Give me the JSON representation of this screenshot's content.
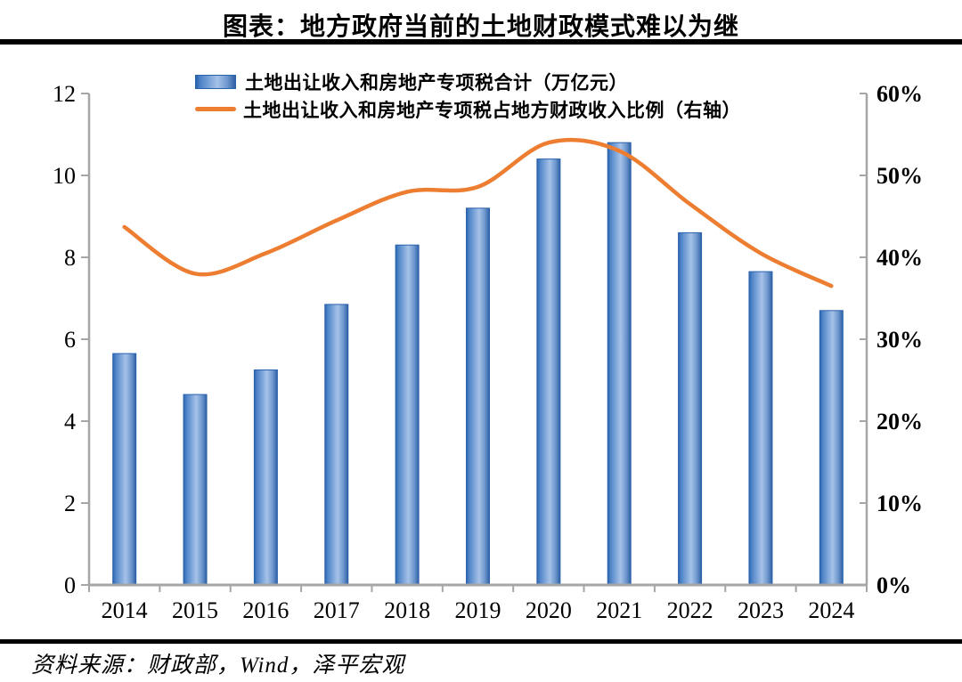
{
  "page": {
    "title": "图表：地方政府当前的土地财政模式难以为继",
    "source": "资料来源：财政部，Wind，泽平宏观"
  },
  "legend": [
    {
      "swatch": "bar-swatch",
      "label": "土地出让收入和房地产专项税合计（万亿元）"
    },
    {
      "swatch": "line-swatch",
      "label": "土地出让收入和房地产专项税占地方财政收入比例（右轴）"
    }
  ],
  "colors": {
    "bar_border": "#2a62ac",
    "bar_gradient_stops": [
      "#2b63ad",
      "#4e84c8",
      "#a6c2e8",
      "#6d97cd",
      "#2f5fa5"
    ],
    "bar_gradient_offsets": [
      0,
      0.12,
      0.55,
      0.8,
      1
    ],
    "line": "#ED7D31",
    "axis": "#a6a6a6",
    "text": "#000000",
    "rule": "#000000"
  },
  "chart_data": {
    "type": "bar+line combo",
    "title": "图表：地方政府当前的土地财政模式难以为继",
    "categories": [
      "2014",
      "2015",
      "2016",
      "2017",
      "2018",
      "2019",
      "2020",
      "2021",
      "2022",
      "2023",
      "2024"
    ],
    "series": [
      {
        "name": "土地出让收入和房地产专项税合计（万亿元）",
        "type": "bar",
        "axis": "left",
        "values": [
          5.65,
          4.65,
          5.25,
          6.85,
          8.3,
          9.2,
          10.4,
          10.8,
          8.6,
          7.65,
          6.7
        ]
      },
      {
        "name": "土地出让收入和房地产专项税占地方财政收入比例（右轴）",
        "type": "line",
        "axis": "right",
        "unit": "%",
        "values": [
          43.7,
          38.0,
          40.5,
          44.5,
          48.0,
          48.6,
          54.0,
          53.0,
          46.5,
          40.5,
          36.5
        ]
      }
    ],
    "left_axis": {
      "min": 0,
      "max": 12,
      "tick_step": 2,
      "tick_labels": [
        "0",
        "2",
        "4",
        "6",
        "8",
        "10",
        "12"
      ]
    },
    "right_axis": {
      "min": 0,
      "max": 60,
      "tick_step": 10,
      "tick_labels": [
        "0%",
        "10%",
        "20%",
        "30%",
        "40%",
        "50%",
        "60%"
      ]
    },
    "grid": false,
    "legend_position": "top",
    "smoothed_line": true
  }
}
